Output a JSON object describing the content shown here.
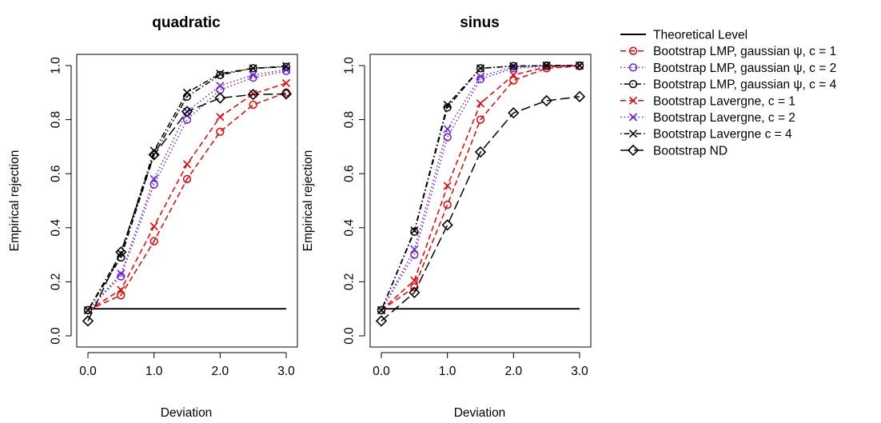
{
  "legend": [
    {
      "label": "Theoretical Level",
      "color": "#000000",
      "dash": "solid",
      "marker": "none"
    },
    {
      "label": "Bootstrap LMP, gaussian ψ, c = 1",
      "color": "#ee0000",
      "dash": "dashed",
      "marker": "circle"
    },
    {
      "label": "Bootstrap LMP, gaussian ψ, c = 2",
      "color": "#6b1fe0",
      "dash": "dotted",
      "marker": "circle"
    },
    {
      "label": "Bootstrap LMP, gaussian ψ, c = 4",
      "color": "#000000",
      "dash": "dotdash",
      "marker": "circle"
    },
    {
      "label": "Bootstrap Lavergne, c = 1",
      "color": "#ee0000",
      "dash": "dashed",
      "marker": "x"
    },
    {
      "label": "Bootstrap Lavergne, c = 2",
      "color": "#6b1fe0",
      "dash": "dotted",
      "marker": "x"
    },
    {
      "label": "Bootstrap Lavergne c = 4",
      "color": "#000000",
      "dash": "dotdash",
      "marker": "x"
    },
    {
      "label": "Bootstrap ND",
      "color": "#000000",
      "dash": "longdash",
      "marker": "diamond"
    }
  ],
  "chart_data": [
    {
      "type": "line",
      "title": "quadratic",
      "xlabel": "Deviation",
      "ylabel": "Empirical rejection",
      "xlim": [
        0,
        3
      ],
      "ylim": [
        0,
        1
      ],
      "x_ticks": [
        "0.0",
        "1.0",
        "2.0",
        "3.0"
      ],
      "y_ticks": [
        "0.0",
        "0.2",
        "0.4",
        "0.6",
        "0.8",
        "1.0"
      ],
      "x": [
        0,
        0.5,
        1.0,
        1.5,
        2.0,
        2.5,
        3.0
      ],
      "series": [
        {
          "name": "Theoretical Level",
          "values": [
            0.1,
            0.1,
            0.1,
            0.1,
            0.1,
            0.1,
            0.1
          ]
        },
        {
          "name": "Bootstrap LMP, gaussian ψ, c = 1",
          "values": [
            0.095,
            0.15,
            0.35,
            0.58,
            0.755,
            0.855,
            0.9
          ]
        },
        {
          "name": "Bootstrap LMP, gaussian ψ, c = 2",
          "values": [
            0.095,
            0.22,
            0.56,
            0.8,
            0.91,
            0.955,
            0.98
          ]
        },
        {
          "name": "Bootstrap LMP, gaussian ψ, c = 4",
          "values": [
            0.095,
            0.29,
            0.67,
            0.885,
            0.965,
            0.99,
            0.995
          ]
        },
        {
          "name": "Bootstrap Lavergne, c = 1",
          "values": [
            0.095,
            0.17,
            0.405,
            0.635,
            0.81,
            0.895,
            0.935
          ]
        },
        {
          "name": "Bootstrap Lavergne, c = 2",
          "values": [
            0.095,
            0.23,
            0.58,
            0.83,
            0.925,
            0.965,
            0.985
          ]
        },
        {
          "name": "Bootstrap Lavergne c = 4",
          "values": [
            0.095,
            0.305,
            0.685,
            0.9,
            0.97,
            0.99,
            0.998
          ]
        },
        {
          "name": "Bootstrap ND",
          "values": [
            0.055,
            0.31,
            0.67,
            0.83,
            0.88,
            0.893,
            0.895
          ]
        }
      ]
    },
    {
      "type": "line",
      "title": "sinus",
      "xlabel": "Deviation",
      "ylabel": "Empirical rejection",
      "xlim": [
        0,
        3
      ],
      "ylim": [
        0,
        1
      ],
      "x_ticks": [
        "0.0",
        "1.0",
        "2.0",
        "3.0"
      ],
      "y_ticks": [
        "0.0",
        "0.2",
        "0.4",
        "0.6",
        "0.8",
        "1.0"
      ],
      "x": [
        0,
        0.5,
        1.0,
        1.5,
        2.0,
        2.5,
        3.0
      ],
      "series": [
        {
          "name": "Theoretical Level",
          "values": [
            0.1,
            0.1,
            0.1,
            0.1,
            0.1,
            0.1,
            0.1
          ]
        },
        {
          "name": "Bootstrap LMP, gaussian ψ, c = 1",
          "values": [
            0.095,
            0.18,
            0.485,
            0.8,
            0.945,
            0.99,
            0.998
          ]
        },
        {
          "name": "Bootstrap LMP, gaussian ψ, c = 2",
          "values": [
            0.095,
            0.3,
            0.735,
            0.95,
            0.99,
            0.998,
            1.0
          ]
        },
        {
          "name": "Bootstrap LMP, gaussian ψ, c = 4",
          "values": [
            0.095,
            0.385,
            0.845,
            0.99,
            0.998,
            1.0,
            1.0
          ]
        },
        {
          "name": "Bootstrap Lavergne, c = 1",
          "values": [
            0.095,
            0.205,
            0.555,
            0.86,
            0.965,
            0.995,
            1.0
          ]
        },
        {
          "name": "Bootstrap Lavergne, c = 2",
          "values": [
            0.095,
            0.32,
            0.765,
            0.96,
            0.995,
            1.0,
            1.0
          ]
        },
        {
          "name": "Bootstrap Lavergne c = 4",
          "values": [
            0.095,
            0.39,
            0.855,
            0.99,
            0.998,
            1.0,
            1.0
          ]
        },
        {
          "name": "Bootstrap ND",
          "values": [
            0.055,
            0.16,
            0.41,
            0.68,
            0.825,
            0.87,
            0.885
          ]
        }
      ]
    }
  ]
}
